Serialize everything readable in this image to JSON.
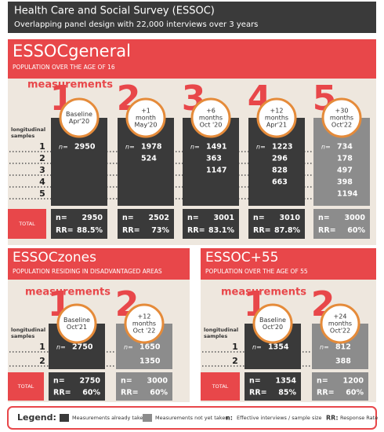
{
  "header": {
    "title": "Health Care and Social Survey (ESSOC)",
    "subtitle": "Overlapping panel design with 22,000 interviews over 3 years"
  },
  "n_label": "n=",
  "rr_label": "RR=",
  "sections": [
    {
      "name": "ESSOCgeneral",
      "description": "POPULATION OVER THE AGE OF 16",
      "measurements_label": "measurements",
      "samples_label": [
        "longitudinal",
        "samples"
      ],
      "total_label": "TOTAL",
      "row_labels": [
        "1",
        "2",
        "3",
        "4",
        "5"
      ],
      "waves": [
        {
          "number": "1",
          "lines": [
            "Baseline",
            "Apr'20"
          ],
          "status": "taken",
          "cells": [
            2950
          ],
          "n": 2950,
          "rr": "88.5%"
        },
        {
          "number": "2",
          "lines": [
            "+1",
            "month",
            "May'20"
          ],
          "status": "taken",
          "cells": [
            1978,
            524
          ],
          "n": 2502,
          "rr": "73%"
        },
        {
          "number": "3",
          "lines": [
            "+6",
            "months",
            "Oct '20"
          ],
          "status": "taken",
          "cells": [
            1491,
            363,
            1147
          ],
          "n": 3001,
          "rr": "83.1%"
        },
        {
          "number": "4",
          "lines": [
            "+12",
            "months",
            "Apr'21"
          ],
          "status": "taken",
          "cells": [
            1223,
            296,
            828,
            663
          ],
          "n": 3010,
          "rr": "87.8%"
        },
        {
          "number": "5",
          "lines": [
            "+30",
            "months",
            "Oct'22"
          ],
          "status": "pending",
          "cells": [
            734,
            178,
            497,
            398,
            1194
          ],
          "n": 3000,
          "rr": "60%"
        }
      ]
    },
    {
      "name": "ESSOCzones",
      "description": "POPULATION RESIDING IN DISADVANTAGED AREAS",
      "measurements_label": "measurements",
      "samples_label": [
        "longitudinal",
        "samples"
      ],
      "total_label": "TOTAL",
      "row_labels": [
        "1",
        "2"
      ],
      "waves": [
        {
          "number": "1",
          "lines": [
            "Baseline",
            "Oct'21"
          ],
          "status": "taken",
          "cells": [
            2750
          ],
          "n": 2750,
          "rr": "60%"
        },
        {
          "number": "2",
          "lines": [
            "+12",
            "months",
            "Oct '22"
          ],
          "status": "pending",
          "cells": [
            1650,
            1350
          ],
          "n": 3000,
          "rr": "60%"
        }
      ]
    },
    {
      "name": "ESSOC+55",
      "description": "POPULATION OVER THE AGE OF 55",
      "measurements_label": "measurements",
      "samples_label": [
        "longitudinal",
        "samples"
      ],
      "total_label": "TOTAL",
      "row_labels": [
        "1",
        "2"
      ],
      "waves": [
        {
          "number": "1",
          "lines": [
            "Baseline",
            "Oct'20"
          ],
          "status": "taken",
          "cells": [
            1354
          ],
          "n": 1354,
          "rr": "85%"
        },
        {
          "number": "2",
          "lines": [
            "+24",
            "months",
            "Oct'22"
          ],
          "status": "pending",
          "cells": [
            812,
            388
          ],
          "n": 1200,
          "rr": "60%"
        }
      ]
    }
  ],
  "legend": {
    "title": "Legend:",
    "taken": "Measurements already taken",
    "pending": "Measurements not yet taken",
    "n_key": "n:",
    "n_text": "Effective interviews / sample size",
    "rr_key": "RR:",
    "rr_text": "Response Rate"
  }
}
